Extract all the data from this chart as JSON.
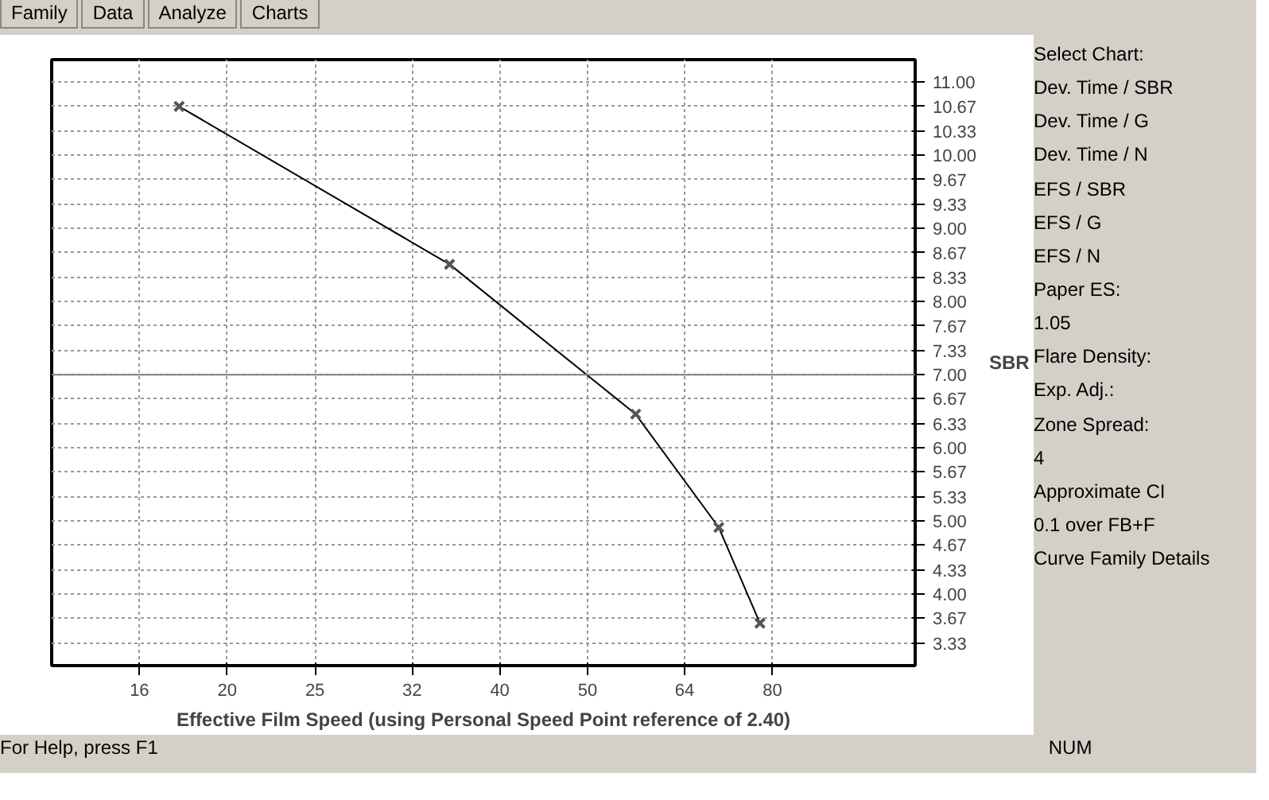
{
  "chart_data": {
    "type": "line",
    "xlabel": "Effective Film Speed (using Personal Speed Point reference of 2.40)",
    "ylabel": "SBR",
    "x": [
      17.7,
      35.2,
      56.5,
      69.8,
      77.5
    ],
    "series": [
      {
        "color": "#000000",
        "values": [
          10.67,
          8.51,
          6.46,
          4.91,
          3.6
        ]
      }
    ],
    "log": "x",
    "xlim": [
      12.8,
      115
    ],
    "xticks": [
      16,
      20,
      25,
      32,
      40,
      50,
      64,
      80
    ],
    "ylim": [
      3.02,
      11.31
    ],
    "yticks": [
      3.33,
      3.67,
      {
        "value": 4,
        "label": "4.00"
      },
      4.33,
      4.67,
      {
        "value": 5,
        "label": "5.00"
      },
      5.33,
      5.67,
      {
        "value": 6,
        "label": "6.00"
      },
      6.33,
      6.67,
      {
        "value": 7,
        "label": "7.00"
      },
      7.33,
      7.67,
      {
        "value": 8,
        "label": "8.00"
      },
      8.33,
      8.67,
      {
        "value": 9,
        "label": "9.00"
      },
      9.33,
      9.67,
      {
        "value": 10,
        "label": "10.00"
      },
      10.33,
      10.67,
      {
        "value": 11,
        "label": "11.00"
      }
    ],
    "ref_lines": [
      {
        "axis": "y",
        "value": 7,
        "color": "#808080"
      }
    ],
    "grid": true,
    "marker": "cross",
    "line_style": "solid",
    "annotations": [
      "Family",
      "Data",
      "Analyze",
      "Charts",
      "Select Chart:",
      "Dev. Time / SBR",
      "Dev. Time / G",
      "Dev. Time / N",
      "EFS / SBR",
      "EFS / G",
      "EFS / N",
      "Paper ES:",
      "1.05",
      "Flare Density:",
      "Exp. Adj.:",
      "Zone Spread:",
      "4",
      "Approximate CI",
      "0.1 over FB+F",
      "Curve Family Details",
      "For Help, press F1",
      "NUM"
    ]
  }
}
